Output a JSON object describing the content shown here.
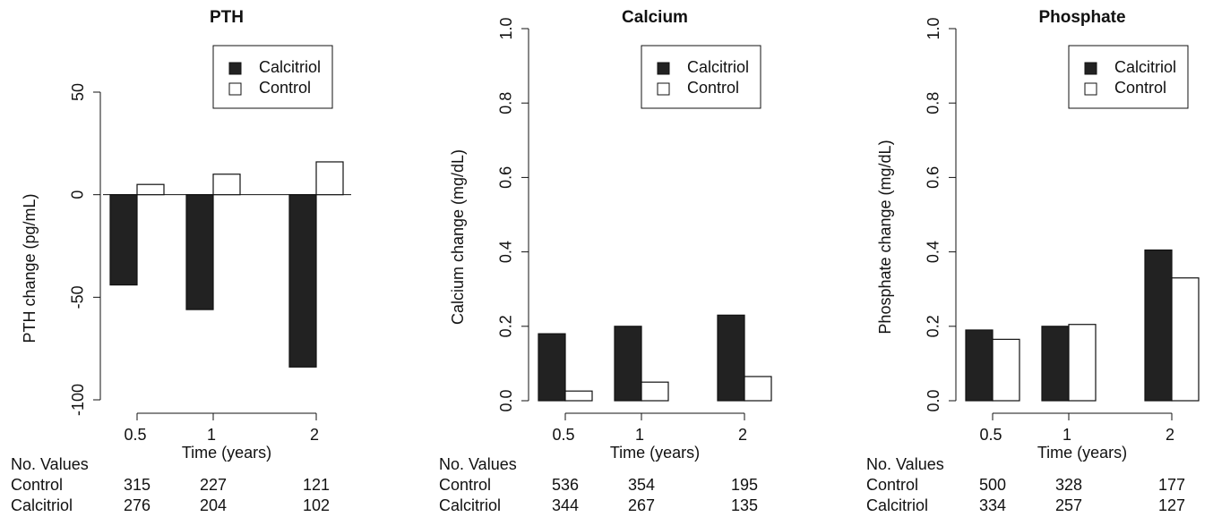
{
  "chart_data": [
    {
      "type": "bar",
      "title": "PTH",
      "y_label": "PTH change (pg/mL)",
      "x_label": "Time (years)",
      "categories": [
        "0.5",
        "1",
        "2"
      ],
      "series": [
        {
          "name": "Calcitriol",
          "color": "#222222",
          "values": [
            -44,
            -56,
            -84
          ]
        },
        {
          "name": "Control",
          "color": "#ffffff",
          "values": [
            5,
            10,
            16
          ]
        }
      ],
      "ylim": [
        -100,
        50
      ],
      "yticks": [
        -100,
        -50,
        0,
        50
      ],
      "legend": "upper right",
      "counts": {
        "title": "No. Values",
        "rows": [
          {
            "name": "Control",
            "values": [
              315,
              227,
              121
            ]
          },
          {
            "name": "Calcitriol",
            "values": [
              276,
              204,
              102
            ]
          }
        ]
      }
    },
    {
      "type": "bar",
      "title": "Calcium",
      "y_label": "Calcium change (mg/dL)",
      "x_label": "Time (years)",
      "categories": [
        "0.5",
        "1",
        "2"
      ],
      "series": [
        {
          "name": "Calcitriol",
          "color": "#222222",
          "values": [
            0.18,
            0.2,
            0.23
          ]
        },
        {
          "name": "Control",
          "color": "#ffffff",
          "values": [
            0.026,
            0.05,
            0.065
          ]
        }
      ],
      "ylim": [
        0,
        1
      ],
      "yticks": [
        {
          "value": 0,
          "label": "0.0"
        },
        0.2,
        0.4,
        0.6,
        0.8,
        {
          "value": 1,
          "label": "1.0"
        }
      ],
      "legend": "upper right",
      "counts": {
        "title": "No. Values",
        "rows": [
          {
            "name": "Control",
            "values": [
              536,
              354,
              195
            ]
          },
          {
            "name": "Calcitriol",
            "values": [
              344,
              267,
              135
            ]
          }
        ]
      }
    },
    {
      "type": "bar",
      "title": "Phosphate",
      "y_label": "Phosphate change (mg/dL)",
      "x_label": "Time (years)",
      "categories": [
        "0.5",
        "1",
        "2"
      ],
      "series": [
        {
          "name": "Calcitriol",
          "color": "#222222",
          "values": [
            0.19,
            0.2,
            0.405
          ]
        },
        {
          "name": "Control",
          "color": "#ffffff",
          "values": [
            0.165,
            0.205,
            0.33
          ]
        }
      ],
      "ylim": [
        0,
        1
      ],
      "yticks": [
        {
          "value": 0,
          "label": "0.0"
        },
        0.2,
        0.4,
        0.6,
        0.8,
        {
          "value": 1,
          "label": "1.0"
        }
      ],
      "legend": "upper right",
      "counts": {
        "title": "No. Values",
        "rows": [
          {
            "name": "Control",
            "values": [
              500,
              328,
              177
            ]
          },
          {
            "name": "Calcitriol",
            "values": [
              334,
              257,
              127
            ]
          }
        ]
      }
    }
  ]
}
